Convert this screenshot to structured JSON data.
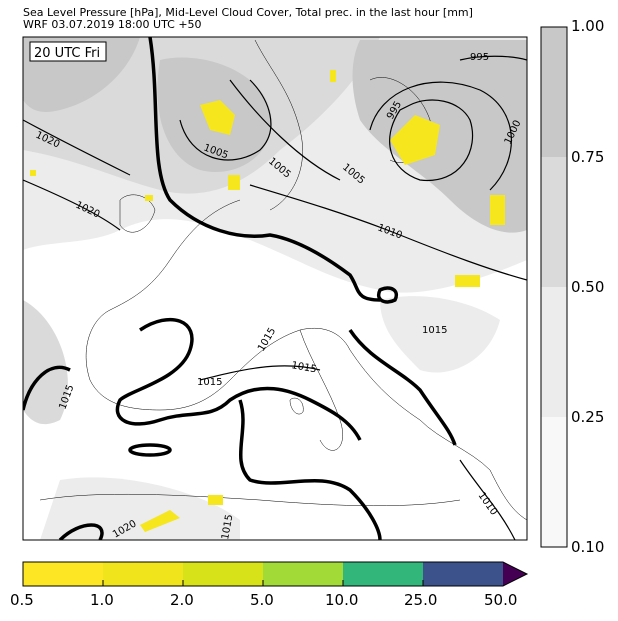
{
  "header": {
    "title": "Sea Level Pressure [hPa], Mid-Level Cloud Cover, Total prec. in the last hour [mm]",
    "subtitle": "WRF 03.07.2019 18:00 UTC +50"
  },
  "map": {
    "time_label": "20 UTC Fri",
    "contour_labels": [
      "1020",
      "1020",
      "1005",
      "1005",
      "1005",
      "995",
      "995",
      "1000",
      "1010",
      "1015",
      "1015",
      "1015",
      "1015",
      "1015",
      "1010",
      "1020",
      "1015"
    ],
    "precip_color": "#f5e61e",
    "isobar_color": "#000000"
  },
  "cloud_colorbar": {
    "ticks": [
      "1.00",
      "0.75",
      "0.50",
      "0.25",
      "0.10"
    ],
    "colors": [
      "#c8c8c8",
      "#dadada",
      "#ececec",
      "#f8f8f8"
    ]
  },
  "precip_colorbar": {
    "ticks": [
      "0.5",
      "1.0",
      "2.0",
      "5.0",
      "10.0",
      "25.0",
      "50.0"
    ],
    "colors": [
      "#fde725",
      "#f0e51c",
      "#d8e219",
      "#a2da37",
      "#32b67a",
      "#3b528b",
      "#440154"
    ]
  }
}
